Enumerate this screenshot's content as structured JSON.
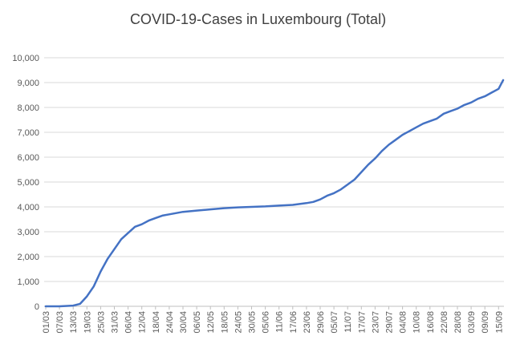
{
  "chart_data": {
    "type": "line",
    "title": "COVID-19-Cases in Luxembourg (Total)",
    "xlabel": "",
    "ylabel": "",
    "ylim": [
      0,
      10000
    ],
    "yticks": [
      0,
      1000,
      2000,
      3000,
      4000,
      5000,
      6000,
      7000,
      8000,
      9000,
      10000
    ],
    "ytick_labels": [
      "0",
      "1,000",
      "2,000",
      "3,000",
      "4,000",
      "5,000",
      "6,000",
      "7,000",
      "8,000",
      "9,000",
      "10,000"
    ],
    "xtick_labels": [
      "01/03",
      "07/03",
      "13/03",
      "19/03",
      "25/03",
      "31/03",
      "06/04",
      "12/04",
      "18/04",
      "24/04",
      "30/04",
      "06/05",
      "12/05",
      "18/05",
      "24/05",
      "30/05",
      "05/06",
      "11/06",
      "17/06",
      "23/06",
      "29/06",
      "05/07",
      "11/07",
      "17/07",
      "23/07",
      "29/07",
      "04/08",
      "10/08",
      "16/08",
      "22/08",
      "28/08",
      "03/09",
      "09/09",
      "15/09"
    ],
    "grid": "horizontal",
    "legend": "none",
    "x_day_tick_spacing": 6,
    "series": [
      {
        "color": "#4472C4",
        "points": [
          {
            "x": "01/03",
            "y": 0
          },
          {
            "x": "07/03",
            "y": 0
          },
          {
            "x": "13/03",
            "y": 30
          },
          {
            "x": "16/03",
            "y": 100
          },
          {
            "x": "19/03",
            "y": 400
          },
          {
            "x": "22/03",
            "y": 800
          },
          {
            "x": "25/03",
            "y": 1400
          },
          {
            "x": "28/03",
            "y": 1900
          },
          {
            "x": "31/03",
            "y": 2300
          },
          {
            "x": "03/04",
            "y": 2700
          },
          {
            "x": "06/04",
            "y": 2950
          },
          {
            "x": "09/04",
            "y": 3200
          },
          {
            "x": "12/04",
            "y": 3300
          },
          {
            "x": "15/04",
            "y": 3450
          },
          {
            "x": "18/04",
            "y": 3550
          },
          {
            "x": "21/04",
            "y": 3650
          },
          {
            "x": "24/04",
            "y": 3700
          },
          {
            "x": "30/04",
            "y": 3800
          },
          {
            "x": "06/05",
            "y": 3850
          },
          {
            "x": "12/05",
            "y": 3900
          },
          {
            "x": "18/05",
            "y": 3950
          },
          {
            "x": "24/05",
            "y": 3980
          },
          {
            "x": "30/05",
            "y": 4000
          },
          {
            "x": "05/06",
            "y": 4020
          },
          {
            "x": "11/06",
            "y": 4050
          },
          {
            "x": "17/06",
            "y": 4080
          },
          {
            "x": "23/06",
            "y": 4150
          },
          {
            "x": "26/06",
            "y": 4200
          },
          {
            "x": "29/06",
            "y": 4300
          },
          {
            "x": "02/07",
            "y": 4450
          },
          {
            "x": "05/07",
            "y": 4550
          },
          {
            "x": "08/07",
            "y": 4700
          },
          {
            "x": "11/07",
            "y": 4900
          },
          {
            "x": "14/07",
            "y": 5100
          },
          {
            "x": "17/07",
            "y": 5400
          },
          {
            "x": "20/07",
            "y": 5700
          },
          {
            "x": "23/07",
            "y": 5950
          },
          {
            "x": "26/07",
            "y": 6250
          },
          {
            "x": "29/07",
            "y": 6500
          },
          {
            "x": "01/08",
            "y": 6700
          },
          {
            "x": "04/08",
            "y": 6900
          },
          {
            "x": "07/08",
            "y": 7050
          },
          {
            "x": "10/08",
            "y": 7200
          },
          {
            "x": "13/08",
            "y": 7350
          },
          {
            "x": "16/08",
            "y": 7450
          },
          {
            "x": "19/08",
            "y": 7550
          },
          {
            "x": "22/08",
            "y": 7750
          },
          {
            "x": "25/08",
            "y": 7850
          },
          {
            "x": "28/08",
            "y": 7950
          },
          {
            "x": "31/08",
            "y": 8100
          },
          {
            "x": "03/09",
            "y": 8200
          },
          {
            "x": "06/09",
            "y": 8350
          },
          {
            "x": "09/09",
            "y": 8450
          },
          {
            "x": "12/09",
            "y": 8600
          },
          {
            "x": "15/09",
            "y": 8750
          },
          {
            "x": "17/09",
            "y": 9100
          }
        ]
      }
    ]
  }
}
